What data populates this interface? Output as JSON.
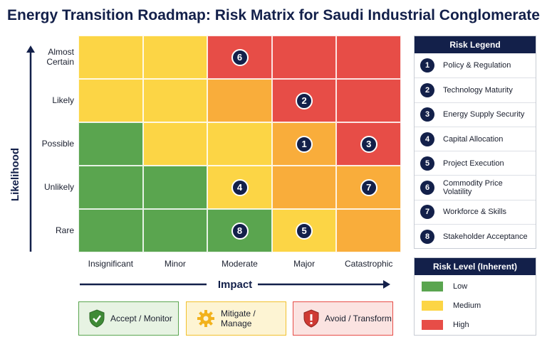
{
  "title": "Energy Transition Roadmap: Risk Matrix for Saudi Industrial Conglomerate",
  "colors": {
    "low": "#5aa54f",
    "medium": "#fcd545",
    "elevated": "#f9ad3b",
    "high": "#e74d47",
    "navy": "#13204a"
  },
  "chart_data": {
    "type": "heatmap",
    "xlabel": "Impact",
    "ylabel": "Likelihood",
    "x_categories": [
      "Insignificant",
      "Minor",
      "Moderate",
      "Major",
      "Catastrophic"
    ],
    "y_categories": [
      "Almost Certain",
      "Likely",
      "Possible",
      "Unlikely",
      "Rare"
    ],
    "cell_levels": [
      [
        "medium",
        "medium",
        "high",
        "high",
        "high"
      ],
      [
        "medium",
        "medium",
        "elevated",
        "high",
        "high"
      ],
      [
        "low",
        "medium",
        "medium",
        "elevated",
        "high"
      ],
      [
        "low",
        "low",
        "medium",
        "elevated",
        "elevated"
      ],
      [
        "low",
        "low",
        "low",
        "medium",
        "elevated"
      ]
    ],
    "risks": [
      {
        "id": "1",
        "name": "Policy & Regulation",
        "impact": "Major",
        "likelihood": "Possible"
      },
      {
        "id": "2",
        "name": "Technology Maturity",
        "impact": "Major",
        "likelihood": "Likely"
      },
      {
        "id": "3",
        "name": "Energy Supply Security",
        "impact": "Catastrophic",
        "likelihood": "Possible"
      },
      {
        "id": "4",
        "name": "Capital Allocation",
        "impact": "Moderate",
        "likelihood": "Unlikely"
      },
      {
        "id": "5",
        "name": "Project Execution",
        "impact": "Major",
        "likelihood": "Rare"
      },
      {
        "id": "6",
        "name": "Commodity Price Volatility",
        "impact": "Moderate",
        "likelihood": "Almost Certain"
      },
      {
        "id": "7",
        "name": "Workforce & Skills",
        "impact": "Catastrophic",
        "likelihood": "Unlikely"
      },
      {
        "id": "8",
        "name": "Stakeholder Acceptance",
        "impact": "Moderate",
        "likelihood": "Rare"
      }
    ]
  },
  "legend": {
    "title": "Risk Legend"
  },
  "risk_level": {
    "title": "Risk Level (Inherent)",
    "items": [
      {
        "label": "Low",
        "color": "#5aa54f"
      },
      {
        "label": "Medium",
        "color": "#fcd545"
      },
      {
        "label": "High",
        "color": "#e74d47"
      }
    ]
  },
  "strategies": [
    {
      "label": "Accept / Monitor",
      "icon": "shield-check-icon",
      "border": "#5aa54f",
      "bg": "#e7f3e3",
      "icon_color": "#3f8a36"
    },
    {
      "label": "Mitigate / Manage",
      "icon": "gear-icon",
      "border": "#f2c12e",
      "bg": "#fdf4d3",
      "icon_color": "#f2b21c"
    },
    {
      "label": "Avoid / Transform",
      "icon": "shield-alert-icon",
      "border": "#e74d47",
      "bg": "#fbe3e1",
      "icon_color": "#cf3a34"
    }
  ]
}
